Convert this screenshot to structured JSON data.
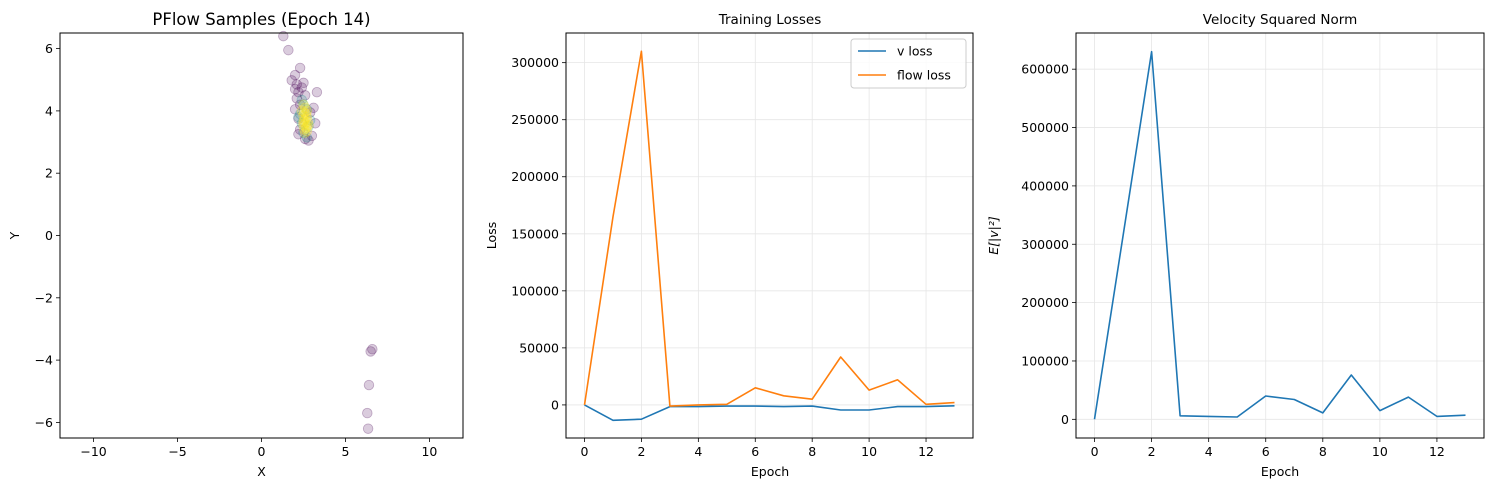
{
  "chart_data": [
    {
      "type": "scatter",
      "title": "PFlow Samples (Epoch 14)",
      "xlabel": "X",
      "ylabel": "Y",
      "xlim": [
        -12,
        12
      ],
      "ylim": [
        -6.5,
        6.5
      ],
      "xticks": [
        -10,
        -5,
        0,
        5,
        10
      ],
      "xtick_labels": [
        "−10",
        "−5",
        "0",
        "5",
        "10"
      ],
      "yticks": [
        -6,
        -4,
        -2,
        0,
        2,
        4,
        6
      ],
      "ytick_labels": [
        "−6",
        "−4",
        "−2",
        "0",
        "2",
        "4",
        "6"
      ],
      "grid": false,
      "colors": {
        "early": "#440154",
        "mid": "#21918c",
        "late": "#fde725"
      },
      "alpha": 0.2,
      "points_early": [
        [
          1.3,
          6.4
        ],
        [
          1.6,
          5.95
        ],
        [
          2.3,
          5.38
        ],
        [
          2.0,
          5.15
        ],
        [
          1.8,
          4.98
        ],
        [
          2.5,
          4.9
        ],
        [
          2.1,
          4.85
        ],
        [
          2.0,
          4.7
        ],
        [
          2.4,
          4.75
        ],
        [
          2.2,
          4.6
        ],
        [
          3.3,
          4.6
        ],
        [
          2.6,
          4.5
        ],
        [
          2.1,
          4.4
        ],
        [
          2.3,
          4.2
        ],
        [
          3.1,
          4.1
        ],
        [
          2.0,
          4.05
        ],
        [
          2.9,
          3.95
        ],
        [
          2.2,
          3.75
        ],
        [
          3.2,
          3.6
        ],
        [
          2.3,
          3.4
        ],
        [
          2.2,
          3.25
        ],
        [
          3.0,
          3.2
        ],
        [
          2.6,
          3.1
        ],
        [
          2.8,
          3.05
        ],
        [
          6.6,
          -3.65
        ],
        [
          6.5,
          -3.72
        ],
        [
          6.4,
          -4.8
        ],
        [
          6.3,
          -5.7
        ],
        [
          6.35,
          -6.2
        ]
      ],
      "points_mid": [
        [
          2.4,
          4.35
        ],
        [
          2.5,
          4.2
        ],
        [
          2.3,
          3.9
        ],
        [
          2.7,
          4.05
        ],
        [
          2.4,
          3.6
        ],
        [
          2.8,
          3.5
        ],
        [
          2.5,
          3.3
        ],
        [
          2.7,
          3.15
        ],
        [
          2.2,
          3.8
        ],
        [
          2.9,
          3.7
        ]
      ],
      "points_late": [
        [
          2.5,
          4.2
        ],
        [
          2.6,
          4.1
        ],
        [
          2.7,
          4.0
        ],
        [
          2.55,
          3.95
        ],
        [
          2.65,
          3.9
        ],
        [
          2.5,
          3.85
        ],
        [
          2.7,
          3.8
        ],
        [
          2.6,
          3.75
        ],
        [
          2.55,
          3.7
        ],
        [
          2.75,
          3.65
        ],
        [
          2.6,
          3.6
        ],
        [
          2.5,
          3.55
        ],
        [
          2.7,
          3.5
        ],
        [
          2.65,
          3.45
        ],
        [
          2.55,
          3.4
        ],
        [
          2.7,
          3.35
        ],
        [
          2.6,
          3.3
        ],
        [
          2.5,
          3.65
        ],
        [
          2.4,
          4.0
        ],
        [
          2.8,
          3.55
        ]
      ]
    },
    {
      "type": "line",
      "title": "Training Losses",
      "xlabel": "Epoch",
      "ylabel": "Loss",
      "xlim": [
        -0.65,
        13.65
      ],
      "ylim": [
        -29000,
        326000
      ],
      "xticks": [
        0,
        2,
        4,
        6,
        8,
        10,
        12
      ],
      "xtick_labels": [
        "0",
        "2",
        "4",
        "6",
        "8",
        "10",
        "12"
      ],
      "yticks": [
        0,
        50000,
        100000,
        150000,
        200000,
        250000,
        300000
      ],
      "ytick_labels": [
        "0",
        "50000",
        "100000",
        "150000",
        "200000",
        "250000",
        "300000"
      ],
      "grid": true,
      "legend": "top-right",
      "x": [
        0,
        1,
        2,
        3,
        4,
        5,
        6,
        7,
        8,
        9,
        10,
        11,
        12,
        13
      ],
      "series": [
        {
          "name": "v loss",
          "color": "#1f77b4",
          "values": [
            0,
            -13500,
            -12500,
            -1500,
            -1500,
            -1000,
            -1000,
            -1500,
            -1000,
            -4500,
            -4500,
            -1500,
            -1500,
            -800
          ]
        },
        {
          "name": "flow loss",
          "color": "#ff7f0e",
          "values": [
            0,
            165000,
            310000,
            -1000,
            0,
            500,
            15000,
            8000,
            5000,
            42000,
            13000,
            22000,
            500,
            2000
          ]
        }
      ]
    },
    {
      "type": "line",
      "title": "Velocity Squared Norm",
      "xlabel": "Epoch",
      "ylabel": "E[|v|²]",
      "xlim": [
        -0.65,
        13.65
      ],
      "ylim": [
        -32000,
        662000
      ],
      "xticks": [
        0,
        2,
        4,
        6,
        8,
        10,
        12
      ],
      "xtick_labels": [
        "0",
        "2",
        "4",
        "6",
        "8",
        "10",
        "12"
      ],
      "yticks": [
        0,
        100000,
        200000,
        300000,
        400000,
        500000,
        600000
      ],
      "ytick_labels": [
        "0",
        "100000",
        "200000",
        "300000",
        "400000",
        "500000",
        "600000"
      ],
      "grid": true,
      "x": [
        0,
        1,
        2,
        3,
        4,
        5,
        6,
        7,
        8,
        9,
        10,
        11,
        12,
        13
      ],
      "series": [
        {
          "color": "#1f77b4",
          "values": [
            0,
            315000,
            630000,
            6000,
            5000,
            4000,
            40000,
            34000,
            11000,
            76000,
            15000,
            38000,
            5000,
            7000
          ]
        }
      ]
    }
  ]
}
